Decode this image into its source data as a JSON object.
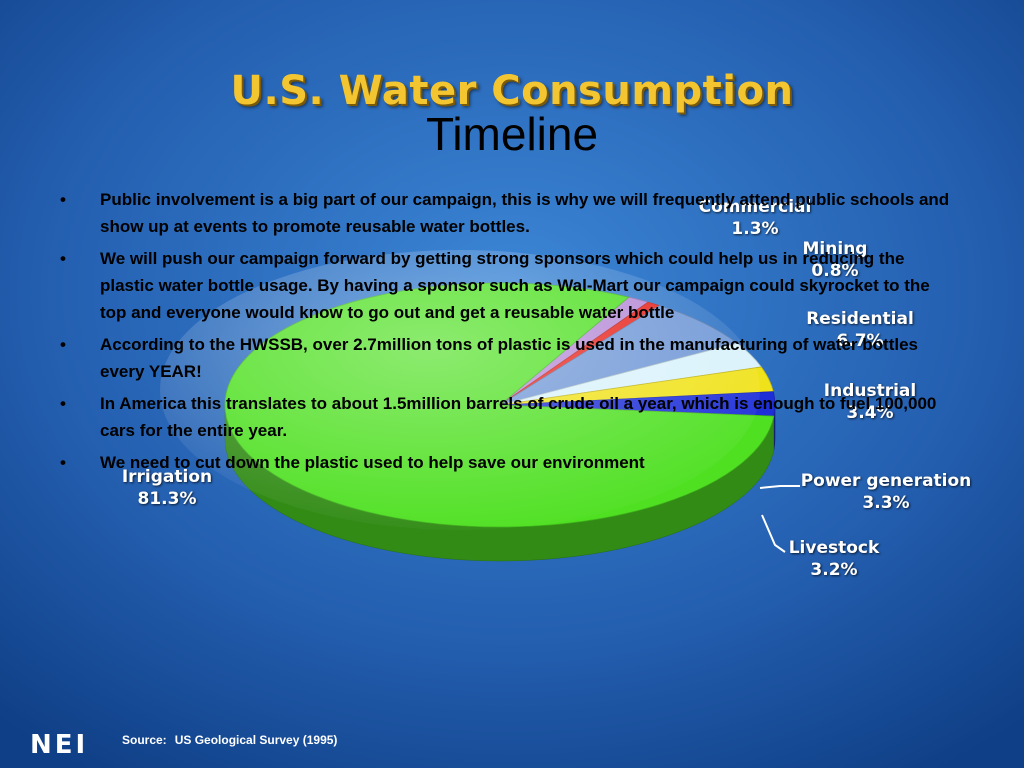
{
  "chart_data": {
    "type": "pie",
    "title": "U.S. Water Consumption",
    "slices": [
      {
        "label": "Irrigation",
        "value_label": "81.3%",
        "value": 81.3,
        "color": "#4fe022"
      },
      {
        "label": "Commercial",
        "value_label": "1.3%",
        "value": 1.3,
        "color": "#b58ad6"
      },
      {
        "label": "Mining",
        "value_label": "0.8%",
        "value": 0.8,
        "color": "#e8231c"
      },
      {
        "label": "Residential",
        "value_label": "6.7%",
        "value": 6.7,
        "color": "#6f97d6"
      },
      {
        "label": "Industrial",
        "value_label": "3.4%",
        "value": 3.4,
        "color": "#d9f2fb"
      },
      {
        "label": "Power generation",
        "value_label": "3.3%",
        "value": 3.3,
        "color": "#f0e21a"
      },
      {
        "label": "Livestock",
        "value_label": "3.2%",
        "value": 3.2,
        "color": "#1e2fd8"
      }
    ],
    "source": "Source:",
    "source_detail": "US Geological Survey (1995)"
  },
  "colors": {
    "background_light": "#2e74c4",
    "background_dark": "#0f3f86",
    "title_gold": "#f3c631"
  },
  "slide": {
    "title": "Timeline",
    "bullet_glyph": "•",
    "bullets": [
      "Public involvement is a big part of our campaign, this  is  why we will frequently attend public schools  and  show up at events to promote reusable water bottles.",
      "We will push our campaign forward by getting strong sponsors which could help us in reducing the plastic water bottle usage.  By having a sponsor such as Wal-Mart our campaign could skyrocket to the top and everyone would know to go out and get a reusable water bottle",
      "According to the HWSSB, over 2.7million tons of plastic is used in the manufacturing of water bottles every YEAR!",
      "In America this translates to about 1.5million barrels of crude oil a year, which is enough to fuel 100,000 cars for the entire year.",
      "We need to cut down the plastic used to help save our environment"
    ]
  },
  "footer": {
    "logo": "NEI"
  }
}
